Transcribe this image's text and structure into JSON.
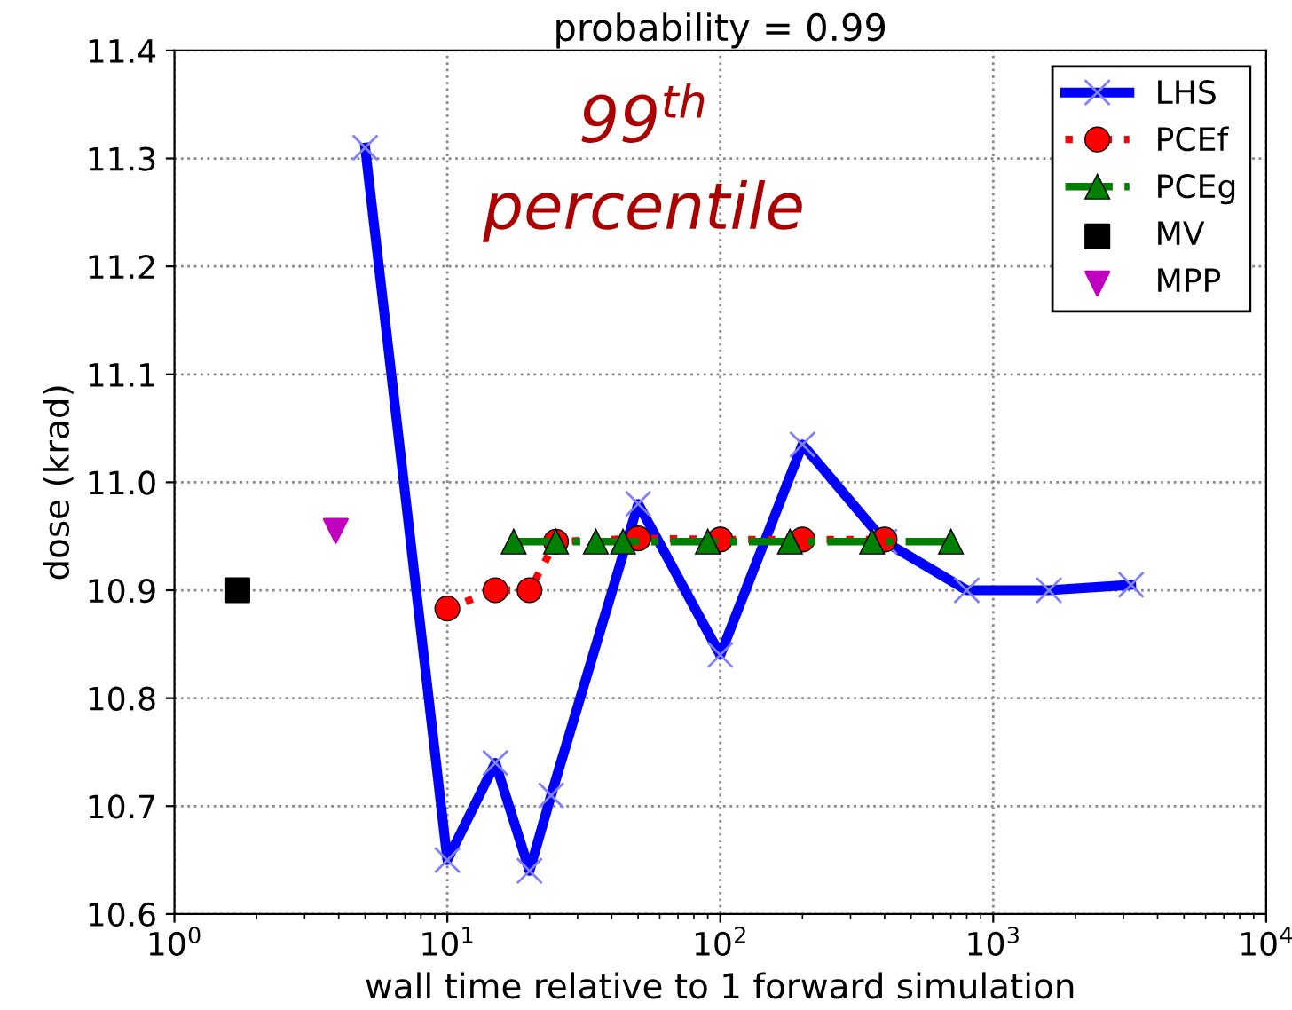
{
  "chart_data": {
    "type": "line",
    "title": "probability = 0.99",
    "xlabel": "wall time relative to 1 forward simulation",
    "ylabel": "dose (krad)",
    "annotations": [
      "99$^{th}$\npercentile"
    ],
    "log": "x",
    "grid": true,
    "legend": "top right",
    "xlim": [
      1,
      10000
    ],
    "xticks": [
      {
        "value": 1,
        "label": "10$^{0}$"
      },
      {
        "value": 10,
        "label": "10$^{1}$"
      },
      {
        "value": 100,
        "label": "10$^{2}$"
      },
      {
        "value": 1000,
        "label": "10$^{3}$"
      },
      {
        "value": 10000,
        "label": "10$^{4}$"
      }
    ],
    "ylim": [
      10.6,
      11.4
    ],
    "yticks": [
      10.6,
      10.7,
      10.8,
      10.9,
      {
        "value": 11,
        "label": "11.0"
      },
      11.1,
      11.2,
      11.3,
      11.4
    ],
    "series": [
      {
        "name": "LHS",
        "color": "#0000ff",
        "marker": "cross",
        "line_style": "solid",
        "x": [
          5,
          10,
          15,
          20,
          24,
          50,
          100,
          200,
          400,
          800,
          1600,
          3200
        ],
        "values": [
          11.31,
          10.65,
          10.74,
          10.64,
          10.71,
          10.98,
          10.84,
          11.035,
          10.945,
          10.9,
          10.9,
          10.905
        ]
      },
      {
        "name": "PCEf",
        "color": "#ff0000",
        "marker": "circle",
        "line_style": "dotted",
        "x": [
          10,
          15,
          20,
          25,
          50,
          100,
          200,
          400
        ],
        "values": [
          10.883,
          10.9,
          10.9,
          10.945,
          10.948,
          10.947,
          10.947,
          10.947
        ]
      },
      {
        "name": "PCEg",
        "color": "#008000",
        "marker": "triangle",
        "line_style": "dashed",
        "x": [
          17.5,
          25,
          35,
          44,
          90,
          180,
          360,
          700
        ],
        "values": [
          10.945,
          10.945,
          10.945,
          10.945,
          10.945,
          10.945,
          10.945,
          10.945
        ]
      },
      {
        "name": "MV",
        "type": "scatter",
        "color": "#000000",
        "marker": "square",
        "x": [
          1.7
        ],
        "values": [
          10.9
        ]
      },
      {
        "name": "MPP",
        "type": "scatter",
        "color": "#bf00bf",
        "marker": "triangle_down",
        "x": [
          3.9
        ],
        "values": [
          10.955
        ]
      }
    ]
  }
}
